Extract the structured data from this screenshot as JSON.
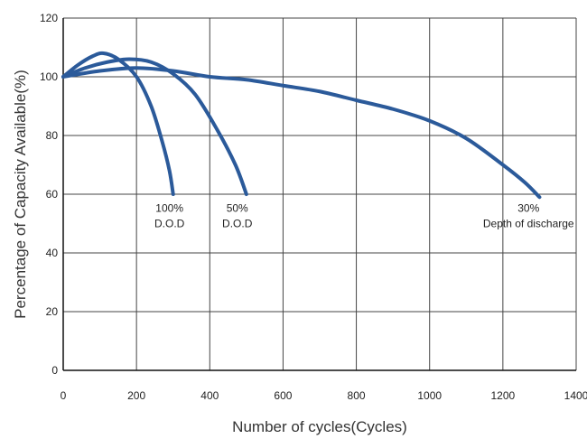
{
  "chart_data": {
    "type": "line",
    "title": "",
    "xlabel": "Number of cycles(Cycles)",
    "ylabel": "Percentage of Capacity Available(%)",
    "xlim": [
      0,
      1400
    ],
    "ylim": [
      0,
      120
    ],
    "xticks": [
      0,
      200,
      400,
      600,
      800,
      1000,
      1200,
      1400
    ],
    "yticks": [
      0,
      20,
      40,
      60,
      80,
      100,
      120
    ],
    "grid": true,
    "line_color": "#2b5a9a",
    "series": [
      {
        "points": [
          [
            0,
            100
          ],
          [
            40,
            104
          ],
          [
            80,
            107
          ],
          [
            110,
            108
          ],
          [
            150,
            106
          ],
          [
            200,
            100
          ],
          [
            240,
            90
          ],
          [
            270,
            78
          ],
          [
            290,
            68
          ],
          [
            300,
            60
          ]
        ]
      },
      {
        "points": [
          [
            0,
            100
          ],
          [
            60,
            103
          ],
          [
            120,
            105
          ],
          [
            180,
            106
          ],
          [
            240,
            105
          ],
          [
            300,
            101
          ],
          [
            360,
            94
          ],
          [
            420,
            82
          ],
          [
            470,
            70
          ],
          [
            500,
            60
          ]
        ]
      },
      {
        "points": [
          [
            0,
            100
          ],
          [
            100,
            102
          ],
          [
            200,
            103
          ],
          [
            300,
            102
          ],
          [
            400,
            100
          ],
          [
            500,
            99
          ],
          [
            600,
            97
          ],
          [
            700,
            95
          ],
          [
            800,
            92
          ],
          [
            900,
            89
          ],
          [
            1000,
            85
          ],
          [
            1100,
            79
          ],
          [
            1200,
            70
          ],
          [
            1260,
            64
          ],
          [
            1300,
            59
          ]
        ]
      }
    ],
    "annotations": [
      {
        "lines": [
          "100%",
          "D.O.D"
        ],
        "x": 290,
        "y": 54
      },
      {
        "lines": [
          "50%",
          "D.O.D"
        ],
        "x": 475,
        "y": 54
      },
      {
        "lines": [
          "30%",
          "Depth of discharge"
        ],
        "x": 1270,
        "y": 54
      }
    ]
  }
}
